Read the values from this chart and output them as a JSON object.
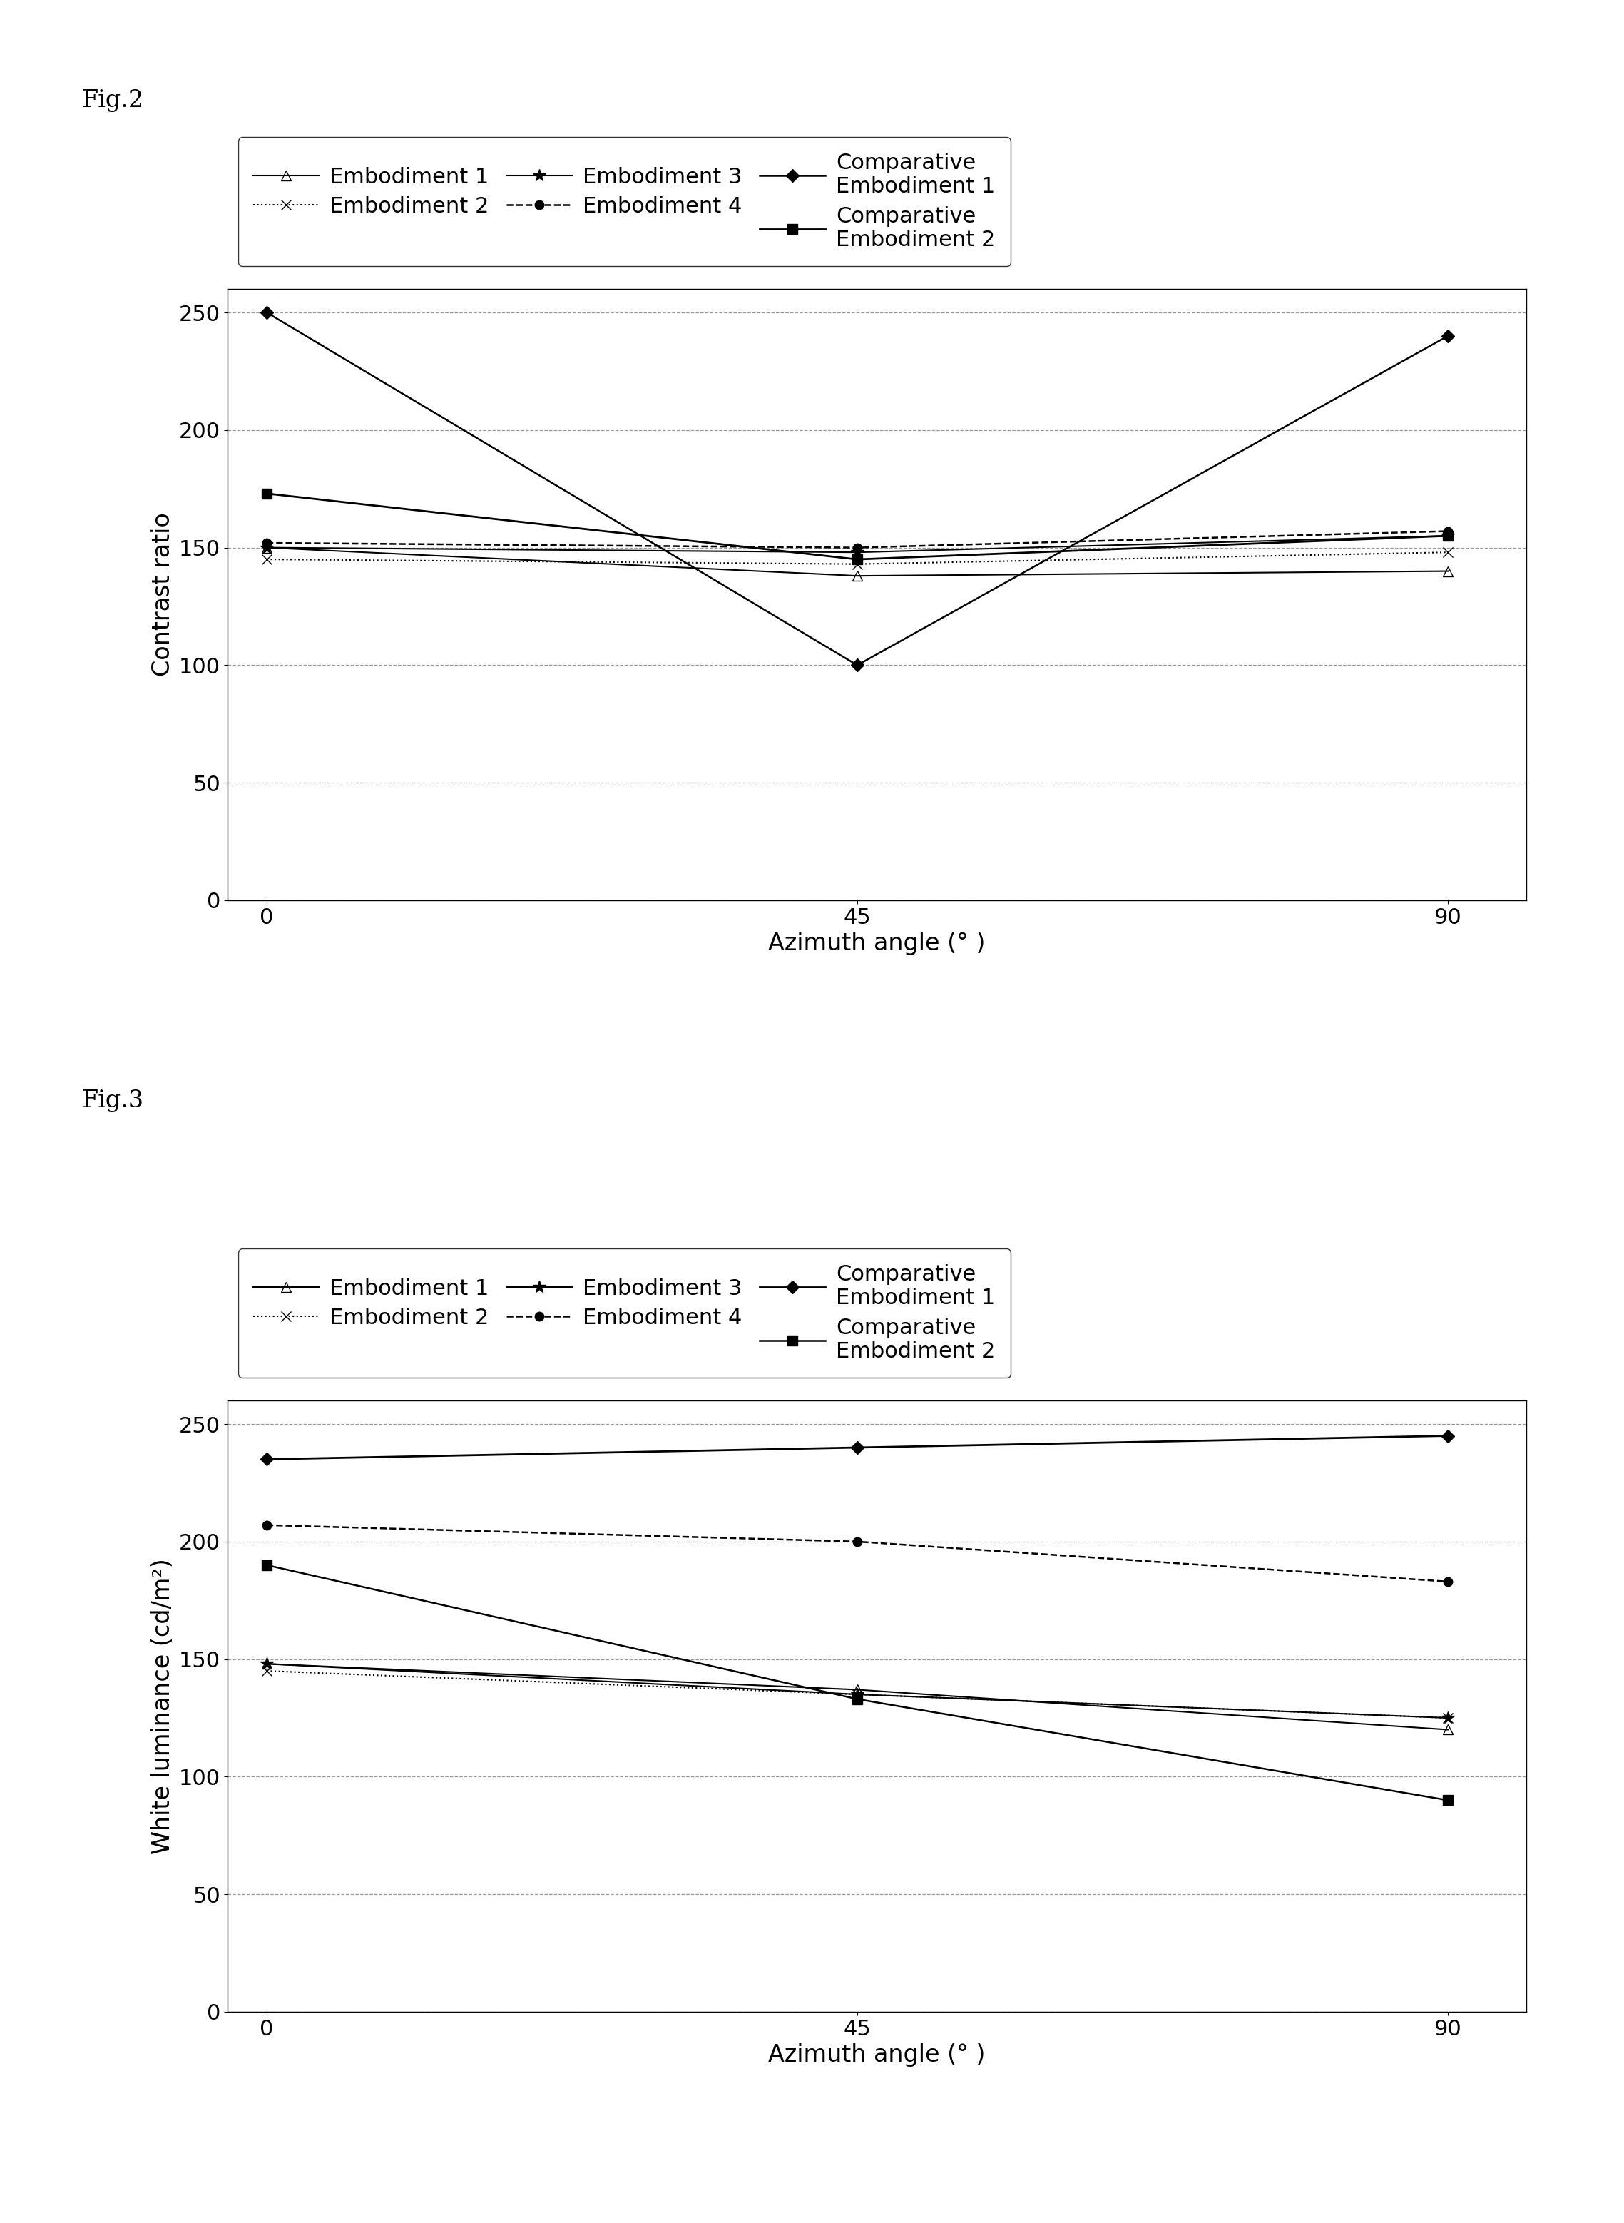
{
  "fig2_title": "Fig.2",
  "fig3_title": "Fig.3",
  "x": [
    0,
    45,
    90
  ],
  "fig2": {
    "ylabel": "Contrast ratio",
    "xlabel": "Azimuth angle (° )",
    "ylim": [
      0,
      260
    ],
    "yticks": [
      0,
      50,
      100,
      150,
      200,
      250
    ],
    "xticks": [
      0,
      45,
      90
    ],
    "series": [
      {
        "label": "Embodiment 1",
        "values": [
          150,
          138,
          140
        ],
        "linestyle": "-",
        "marker": "^",
        "markersize": 10,
        "linewidth": 1.5,
        "fillstyle": "none"
      },
      {
        "label": "Embodiment 2",
        "values": [
          145,
          143,
          148
        ],
        "linestyle": ":",
        "marker": "x",
        "markersize": 10,
        "linewidth": 1.5,
        "fillstyle": "full"
      },
      {
        "label": "Embodiment 3",
        "values": [
          150,
          148,
          155
        ],
        "linestyle": "-",
        "marker": "*",
        "markersize": 13,
        "linewidth": 1.5,
        "fillstyle": "full"
      },
      {
        "label": "Embodiment 4",
        "values": [
          152,
          150,
          157
        ],
        "linestyle": "--",
        "marker": "o",
        "markersize": 9,
        "linewidth": 1.8,
        "fillstyle": "full"
      },
      {
        "label": "Comparative\nEmbodiment 1",
        "values": [
          250,
          100,
          240
        ],
        "linestyle": "-",
        "marker": "D",
        "markersize": 9,
        "linewidth": 1.8,
        "fillstyle": "full"
      },
      {
        "label": "Comparative\nEmbodiment 2",
        "values": [
          173,
          145,
          155
        ],
        "linestyle": "-",
        "marker": "s",
        "markersize": 10,
        "linewidth": 2.0,
        "fillstyle": "full"
      }
    ]
  },
  "fig3": {
    "ylabel": "White luminance (cd/m²)",
    "xlabel": "Azimuth angle (° )",
    "ylim": [
      0,
      260
    ],
    "yticks": [
      0,
      50,
      100,
      150,
      200,
      250
    ],
    "xticks": [
      0,
      45,
      90
    ],
    "series": [
      {
        "label": "Embodiment 1",
        "values": [
          148,
          137,
          120
        ],
        "linestyle": "-",
        "marker": "^",
        "markersize": 10,
        "linewidth": 1.5,
        "fillstyle": "none"
      },
      {
        "label": "Embodiment 2",
        "values": [
          145,
          135,
          125
        ],
        "linestyle": ":",
        "marker": "x",
        "markersize": 10,
        "linewidth": 1.5,
        "fillstyle": "full"
      },
      {
        "label": "Embodiment 3",
        "values": [
          148,
          135,
          125
        ],
        "linestyle": "-",
        "marker": "*",
        "markersize": 13,
        "linewidth": 1.5,
        "fillstyle": "full"
      },
      {
        "label": "Embodiment 4",
        "values": [
          207,
          200,
          183
        ],
        "linestyle": "--",
        "marker": "o",
        "markersize": 9,
        "linewidth": 1.8,
        "fillstyle": "full"
      },
      {
        "label": "Comparative\nEmbodiment 1",
        "values": [
          235,
          240,
          245
        ],
        "linestyle": "-",
        "marker": "D",
        "markersize": 9,
        "linewidth": 2.0,
        "fillstyle": "full"
      },
      {
        "label": "Comparative\nEmbodiment 2",
        "values": [
          190,
          133,
          90
        ],
        "linestyle": "-",
        "marker": "s",
        "markersize": 10,
        "linewidth": 1.8,
        "fillstyle": "full"
      }
    ]
  },
  "bg_color": "#ffffff",
  "grid_color": "#999999",
  "font_size": 22,
  "label_fontsize": 24,
  "tick_fontsize": 22,
  "figtitle_fontsize": 24
}
